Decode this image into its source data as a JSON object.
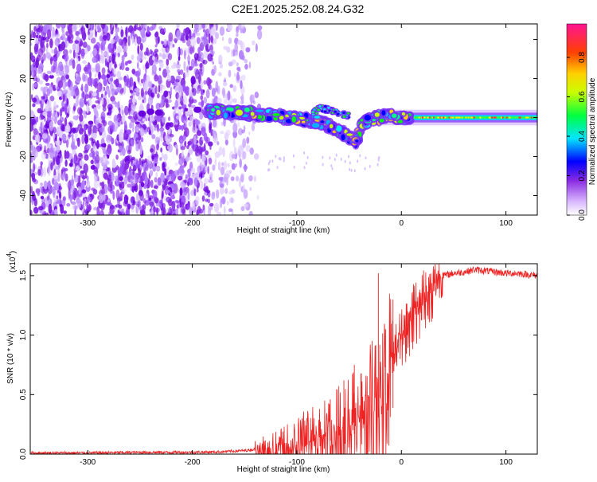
{
  "title": "C2E1.2025.252.08.24.G32",
  "chart_data": [
    {
      "type": "heatmap",
      "title": "C2E1.2025.252.08.24.G32",
      "xlabel": "Height of straight line (km)",
      "ylabel": "Frequency (Hz)",
      "xlim": [
        -355,
        130
      ],
      "ylim": [
        -50,
        48
      ],
      "xticks": [
        -300,
        -200,
        -100,
        0,
        100
      ],
      "yticks": [
        -40,
        -20,
        0,
        20,
        40
      ],
      "xtick_labels": [
        "-300",
        "-200",
        "-100",
        "0",
        "100"
      ],
      "ytick_labels": [
        "-40",
        "-20",
        "0",
        "20",
        "40"
      ],
      "colorbar": {
        "label": "Normalized spectral amplitude",
        "range": [
          0,
          0.97
        ],
        "ticks": [
          0.0,
          0.2,
          0.4,
          0.6,
          0.8
        ],
        "tick_labels": [
          "0.0",
          "0.2",
          "0.4",
          "0.6",
          "0.8"
        ],
        "colormap": [
          "#ffffff",
          "#8a2be2",
          "#0000ff",
          "#00e5ff",
          "#00ff00",
          "#ffff00",
          "#ff8000",
          "#ff0000",
          "#ff1493"
        ]
      },
      "signal_track": [
        {
          "x": -185,
          "y": 3
        },
        {
          "x": -170,
          "y": 3
        },
        {
          "x": -155,
          "y": 2.5
        },
        {
          "x": -140,
          "y": 2
        },
        {
          "x": -125,
          "y": 1.5
        },
        {
          "x": -110,
          "y": 0
        },
        {
          "x": -95,
          "y": -1
        },
        {
          "x": -80,
          "y": -2
        },
        {
          "x": -70,
          "y": -4
        },
        {
          "x": -60,
          "y": -7
        },
        {
          "x": -50,
          "y": -10
        },
        {
          "x": -42,
          "y": -13
        },
        {
          "x": -38,
          "y": -3
        },
        {
          "x": -30,
          "y": -1
        },
        {
          "x": -20,
          "y": 0
        },
        {
          "x": -10,
          "y": 1
        },
        {
          "x": 0,
          "y": 0
        },
        {
          "x": 20,
          "y": 0
        },
        {
          "x": 60,
          "y": 0
        },
        {
          "x": 100,
          "y": 0
        },
        {
          "x": 130,
          "y": 0
        }
      ],
      "upper_branch": [
        {
          "x": -85,
          "y": 2
        },
        {
          "x": -78,
          "y": 5
        },
        {
          "x": -70,
          "y": 4
        },
        {
          "x": -60,
          "y": 2
        },
        {
          "x": -50,
          "y": 1
        }
      ]
    },
    {
      "type": "line",
      "xlabel": "Height of straight line (km)",
      "ylabel": "SNR (10 * v/v)",
      "y_multiplier_label": "(x10",
      "y_multiplier_exp": "4",
      "y_multiplier_close": ")",
      "xlim": [
        -355,
        130
      ],
      "ylim": [
        0,
        1.6
      ],
      "xticks": [
        -300,
        -200,
        -100,
        0,
        100
      ],
      "yticks": [
        0.0,
        0.5,
        1.0,
        1.5
      ],
      "xtick_labels": [
        "-300",
        "-200",
        "-100",
        "0",
        "100"
      ],
      "ytick_labels": [
        "0.0",
        "0.5",
        "1.0",
        "1.5"
      ],
      "line_color": "#ee2222",
      "series": [
        {
          "name": "SNR",
          "x": [
            -355,
            -300,
            -250,
            -200,
            -170,
            -150,
            -130,
            -115,
            -105,
            -95,
            -85,
            -75,
            -65,
            -55,
            -45,
            -35,
            -25,
            -20,
            -15,
            -10,
            -5,
            0,
            5,
            10,
            15,
            20,
            25,
            30,
            40,
            50,
            60,
            70,
            80,
            90,
            100,
            110,
            120,
            130
          ],
          "y": [
            0.01,
            0.01,
            0.015,
            0.015,
            0.02,
            0.03,
            0.05,
            0.08,
            0.12,
            0.18,
            0.22,
            0.25,
            0.3,
            0.35,
            0.42,
            0.5,
            0.65,
            0.85,
            0.75,
            0.95,
            1.0,
            1.05,
            1.15,
            1.25,
            1.32,
            1.38,
            1.42,
            1.45,
            1.5,
            1.52,
            1.53,
            1.55,
            1.54,
            1.53,
            1.52,
            1.52,
            1.51,
            1.5
          ]
        }
      ],
      "spikes": [
        {
          "x": -22,
          "y": 1.52
        },
        {
          "x": -45,
          "y": 0.75
        },
        {
          "x": -55,
          "y": 0.62
        },
        {
          "x": -68,
          "y": 0.46
        },
        {
          "x": -95,
          "y": 0.3
        },
        {
          "x": -8,
          "y": 1.3
        }
      ]
    }
  ]
}
